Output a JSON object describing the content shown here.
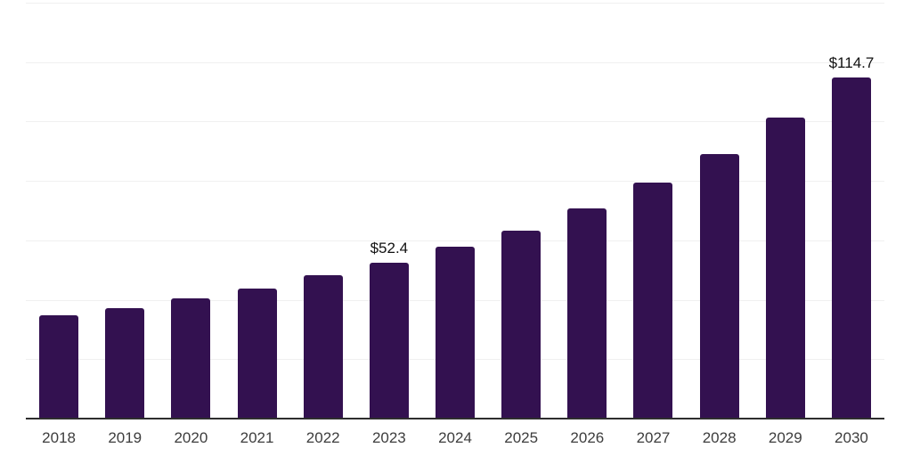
{
  "chart_data": {
    "type": "bar",
    "title": "",
    "xlabel": "",
    "ylabel": "",
    "categories": [
      "2018",
      "2019",
      "2020",
      "2021",
      "2022",
      "2023",
      "2024",
      "2025",
      "2026",
      "2027",
      "2028",
      "2029",
      "2030"
    ],
    "values": [
      34.7,
      37.1,
      40.4,
      43.7,
      48.2,
      52.4,
      57.8,
      63.2,
      70.7,
      79.3,
      89.1,
      101.2,
      114.7
    ],
    "data_labels": [
      {
        "category": "2023",
        "text": "$52.4"
      },
      {
        "category": "2030",
        "text": "$114.7"
      }
    ],
    "ylim": [
      0,
      140
    ],
    "gridline_step": 20,
    "grid": "horizontal-only",
    "y_tick_labels_visible": false,
    "legend": "none",
    "colors": {
      "bar": "#331150",
      "axis_line": "#2e2e2e",
      "gridline": "#f0f0f0",
      "x_label": "#3d3d3d",
      "data_label": "#111111",
      "background": "#ffffff"
    }
  }
}
